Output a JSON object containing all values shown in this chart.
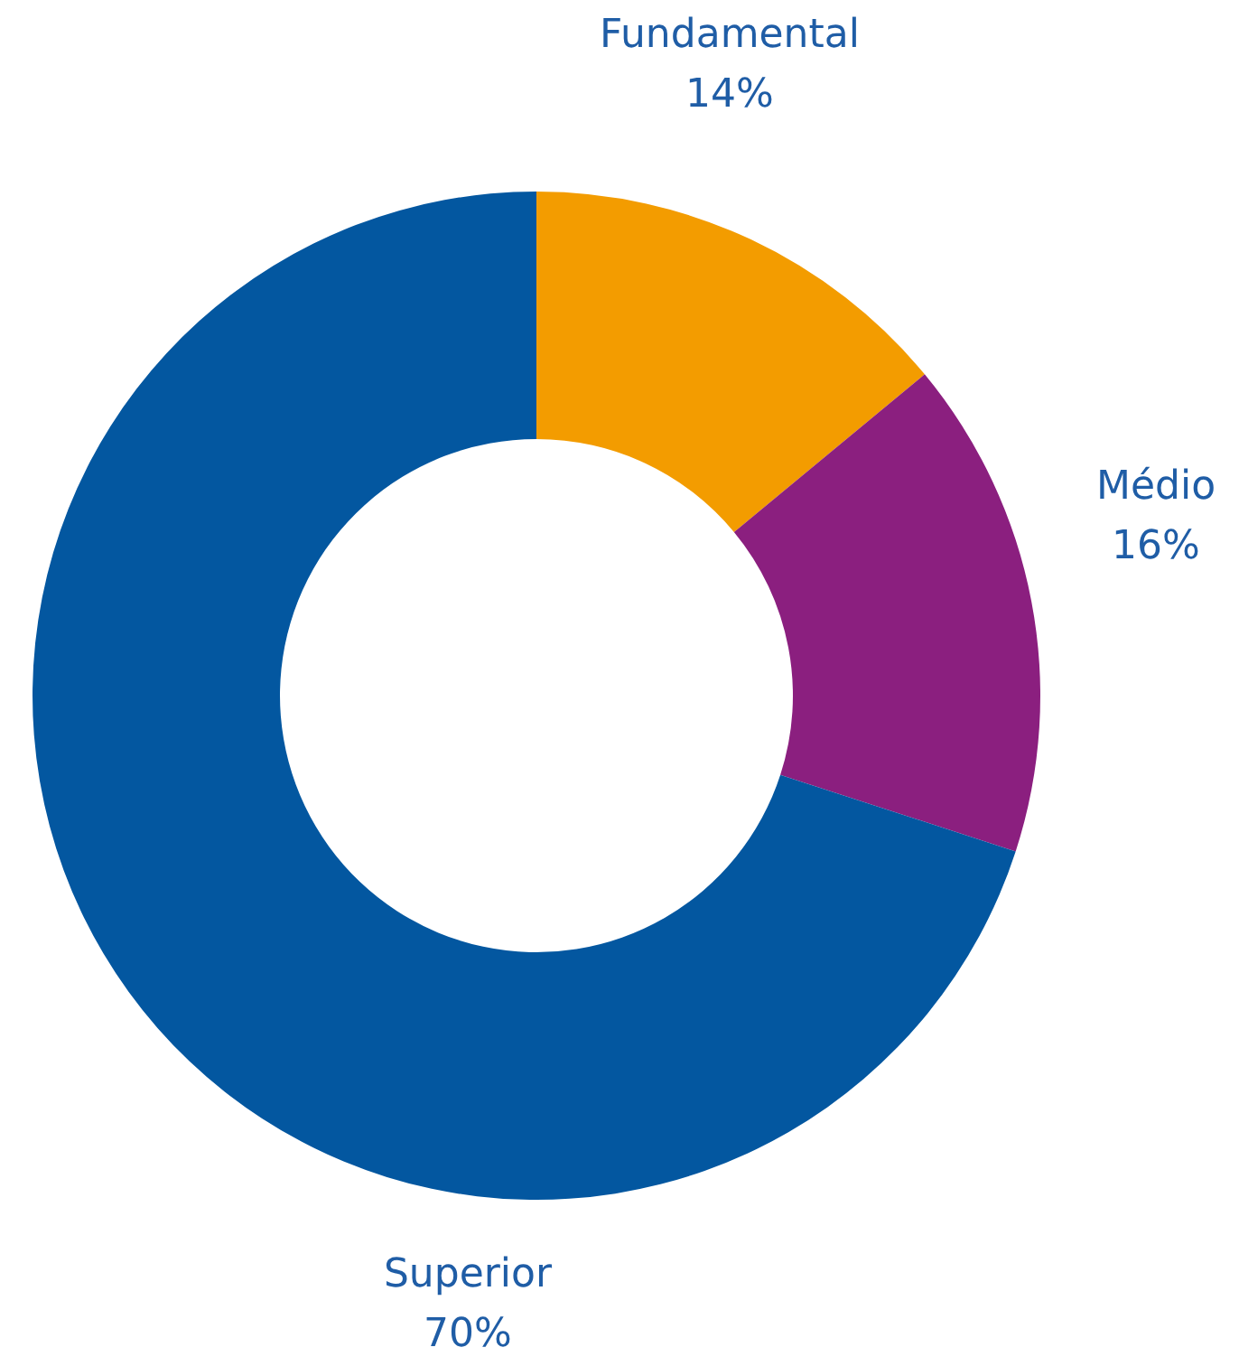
{
  "chart_data": {
    "type": "donut",
    "categories": [
      "Fundamental",
      "Médio",
      "Superior"
    ],
    "values": [
      14,
      16,
      70
    ],
    "value_labels": [
      "14%",
      "16%",
      "70%"
    ],
    "colors": [
      "#f39c00",
      "#8b1f7f",
      "#0357a0"
    ]
  }
}
